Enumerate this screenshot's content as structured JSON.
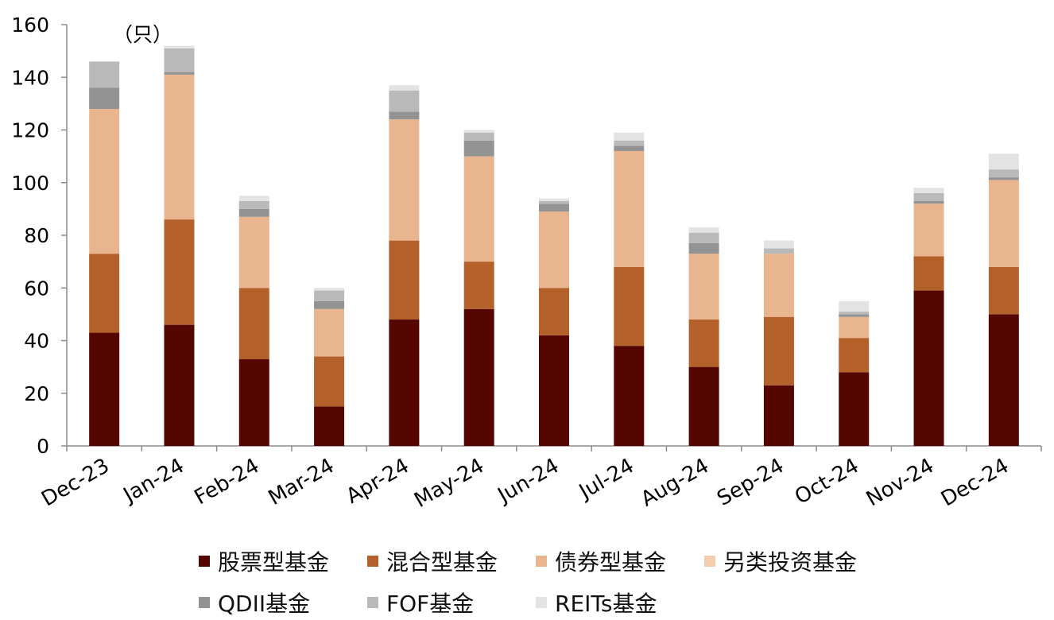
{
  "chart_data": {
    "type": "bar",
    "stacked": true,
    "unit_label": "（只）",
    "ylim": [
      0,
      160
    ],
    "yticks": [
      0,
      20,
      40,
      60,
      80,
      100,
      120,
      140,
      160
    ],
    "grid": false,
    "legend_position": "bottom",
    "categories": [
      "Dec-23",
      "Jan-24",
      "Feb-24",
      "Mar-24",
      "Apr-24",
      "May-24",
      "Jun-24",
      "Jul-24",
      "Aug-24",
      "Sep-24",
      "Oct-24",
      "Nov-24",
      "Dec-24"
    ],
    "series": [
      {
        "name": "股票型基金",
        "color": "#560600",
        "values": [
          43,
          46,
          33,
          15,
          48,
          52,
          42,
          38,
          30,
          23,
          28,
          59,
          50
        ]
      },
      {
        "name": "混合型基金",
        "color": "#B4602A",
        "values": [
          30,
          40,
          27,
          19,
          30,
          18,
          18,
          30,
          18,
          26,
          13,
          13,
          18
        ]
      },
      {
        "name": "债券型基金",
        "color": "#E9B58F",
        "values": [
          55,
          55,
          27,
          18,
          46,
          40,
          29,
          44,
          25,
          24,
          8,
          20,
          33
        ]
      },
      {
        "name": "另类投资基金",
        "color": "#F4CDB0",
        "values": [
          0,
          0,
          0,
          0,
          0,
          0,
          0,
          0,
          0,
          0,
          0,
          0,
          0
        ]
      },
      {
        "name": "QDII基金",
        "color": "#939393",
        "values": [
          8,
          1,
          3,
          3,
          3,
          6,
          3,
          2,
          4,
          0,
          1,
          1,
          1
        ]
      },
      {
        "name": "FOF基金",
        "color": "#B9B9B9",
        "values": [
          10,
          9,
          3,
          4,
          8,
          3,
          1,
          2,
          4,
          2,
          1,
          3,
          3
        ]
      },
      {
        "name": "REITs基金",
        "color": "#E3E3E3",
        "values": [
          0,
          1,
          2,
          1,
          2,
          1,
          1,
          3,
          2,
          3,
          4,
          2,
          6
        ]
      }
    ]
  }
}
